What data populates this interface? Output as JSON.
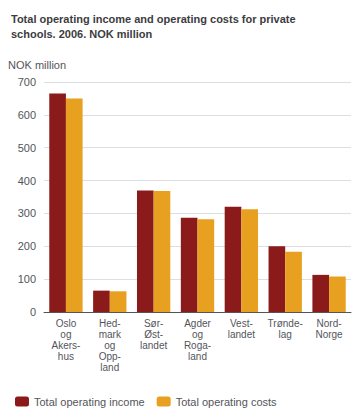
{
  "chart_data": {
    "type": "bar",
    "title": "Total operating income and operating costs for private\nschools. 2006. NOK million",
    "ylabel": "NOK million",
    "categories": [
      "Oslo\nog\nAkers-\nhus",
      "Hed-\nmark\nog\nOpp-\nland",
      "Sør-\nØst-\nlandet",
      "Agder\nog\nRoga-\nland",
      "Vest-\nlandet",
      "Trønde-\nlag",
      "Nord-\nNorge"
    ],
    "series": [
      {
        "name": "Total operating income",
        "color": "#8B1A1A",
        "values": [
          665,
          65,
          370,
          287,
          320,
          200,
          113
        ]
      },
      {
        "name": "Total operating costs",
        "color": "#E8A020",
        "values": [
          650,
          63,
          368,
          282,
          313,
          183,
          108
        ]
      }
    ],
    "ylim": [
      0,
      700
    ],
    "yticks": [
      0,
      100,
      200,
      300,
      400,
      500,
      600,
      700
    ],
    "grid": true,
    "legend": "lower left"
  }
}
